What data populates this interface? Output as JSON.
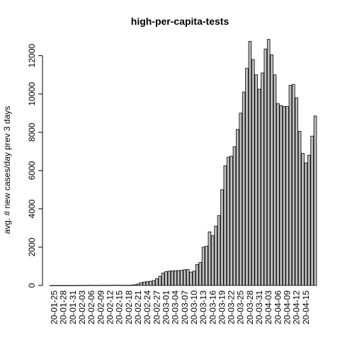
{
  "chart_data": {
    "type": "bar",
    "title": "high-per-capita-tests",
    "ylabel": "avg. # new cases/day prev  3  days",
    "xlabel": "",
    "ylim": [
      0,
      12800
    ],
    "yticks": [
      0,
      2000,
      4000,
      6000,
      8000,
      10000,
      12000
    ],
    "xtick_labels": [
      "20-01-25",
      "20-01-28",
      "20-01-31",
      "20-02-03",
      "20-02-06",
      "20-02-09",
      "20-02-12",
      "20-02-15",
      "20-02-18",
      "20-02-21",
      "20-02-24",
      "20-02-27",
      "20-03-01",
      "20-03-04",
      "20-03-07",
      "20-03-10",
      "20-03-13",
      "20-03-16",
      "20-03-19",
      "20-03-22",
      "20-03-25",
      "20-03-28",
      "20-03-31",
      "20-04-03",
      "20-04-06",
      "20-04-09",
      "20-04-12",
      "20-04-15"
    ],
    "categories": [
      "20-01-24",
      "20-01-25",
      "20-01-26",
      "20-01-27",
      "20-01-28",
      "20-01-29",
      "20-01-30",
      "20-01-31",
      "20-02-01",
      "20-02-02",
      "20-02-03",
      "20-02-04",
      "20-02-05",
      "20-02-06",
      "20-02-07",
      "20-02-08",
      "20-02-09",
      "20-02-10",
      "20-02-11",
      "20-02-12",
      "20-02-13",
      "20-02-14",
      "20-02-15",
      "20-02-16",
      "20-02-17",
      "20-02-18",
      "20-02-19",
      "20-02-20",
      "20-02-21",
      "20-02-22",
      "20-02-23",
      "20-02-24",
      "20-02-25",
      "20-02-26",
      "20-02-27",
      "20-02-28",
      "20-02-29",
      "20-03-01",
      "20-03-02",
      "20-03-03",
      "20-03-04",
      "20-03-05",
      "20-03-06",
      "20-03-07",
      "20-03-08",
      "20-03-09",
      "20-03-10",
      "20-03-11",
      "20-03-12",
      "20-03-13",
      "20-03-14",
      "20-03-15",
      "20-03-16",
      "20-03-17",
      "20-03-18",
      "20-03-19",
      "20-03-20",
      "20-03-21",
      "20-03-22",
      "20-03-23",
      "20-03-24",
      "20-03-25",
      "20-03-26",
      "20-03-27",
      "20-03-28",
      "20-03-29",
      "20-03-30",
      "20-03-31",
      "20-04-01",
      "20-04-02",
      "20-04-03",
      "20-04-04",
      "20-04-05",
      "20-04-06",
      "20-04-07",
      "20-04-08",
      "20-04-09",
      "20-04-10",
      "20-04-11",
      "20-04-12",
      "20-04-13",
      "20-04-14",
      "20-04-15",
      "20-04-16",
      "20-04-17",
      "20-04-18"
    ],
    "values": [
      0,
      0,
      0,
      0,
      0,
      0,
      0,
      0,
      0,
      5,
      5,
      5,
      10,
      10,
      5,
      5,
      10,
      10,
      10,
      10,
      15,
      15,
      15,
      10,
      10,
      10,
      20,
      40,
      80,
      150,
      180,
      200,
      220,
      260,
      350,
      480,
      650,
      720,
      750,
      760,
      770,
      780,
      790,
      820,
      830,
      700,
      750,
      1100,
      1200,
      2000,
      2050,
      2800,
      2600,
      3100,
      3650,
      5000,
      6250,
      6700,
      6750,
      7250,
      8150,
      9000,
      10100,
      11350,
      12750,
      11800,
      11000,
      10250,
      11100,
      12350,
      12850,
      12050,
      11000,
      9500,
      9400,
      9350,
      9350,
      10450,
      10500,
      9800,
      8050,
      6900,
      6400,
      6800,
      7800,
      8850
    ]
  }
}
